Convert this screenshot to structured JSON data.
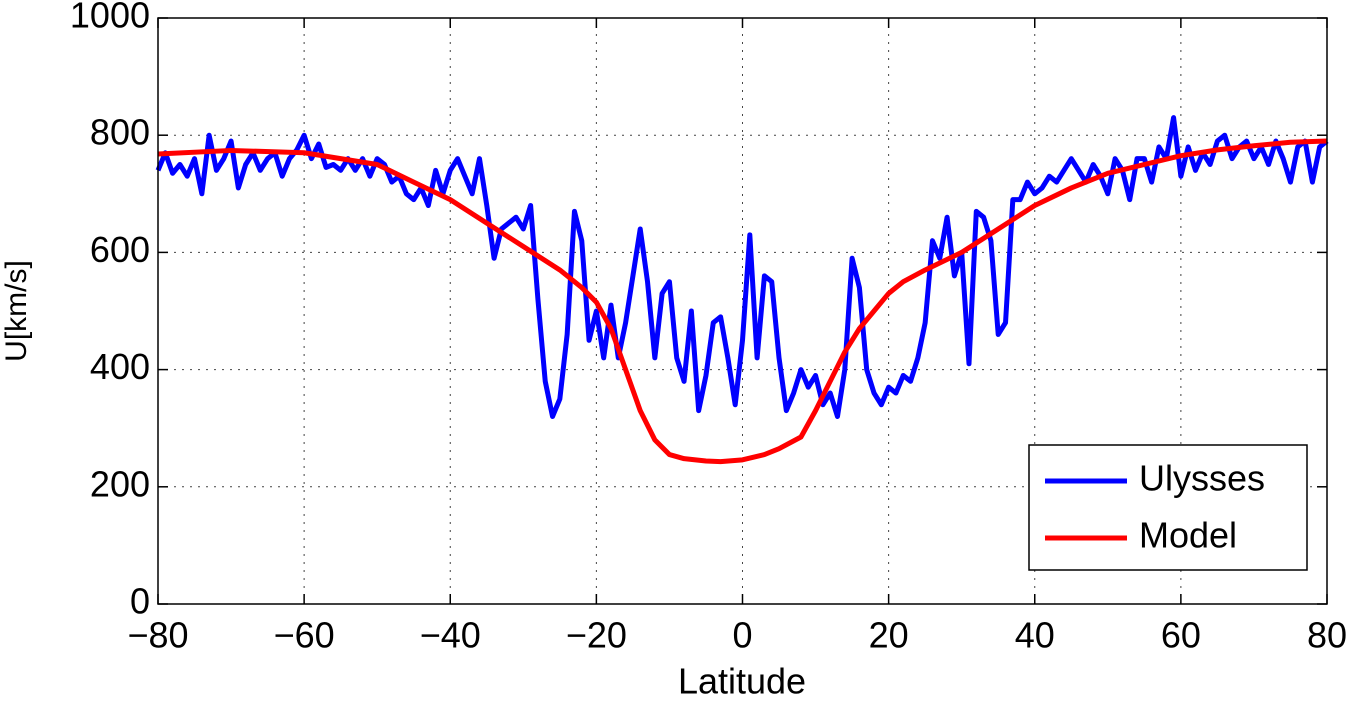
{
  "chart_data": {
    "type": "line",
    "xlabel": "Latitude",
    "ylabel": "U[km/s]",
    "xlim": [
      -80,
      80
    ],
    "ylim": [
      0,
      1000
    ],
    "xticks": [
      {
        "value": -80,
        "label": "−80"
      },
      {
        "value": -60,
        "label": "−60"
      },
      {
        "value": -40,
        "label": "−40"
      },
      {
        "value": -20,
        "label": "−20"
      },
      0,
      20,
      40,
      60,
      80
    ],
    "yticks": [
      0,
      200,
      400,
      600,
      800,
      1000
    ],
    "grid": true,
    "legend": "lower right",
    "series": [
      {
        "name": "Ulysses",
        "color": "#0000ff",
        "x": [
          -80,
          -79,
          -78,
          -77,
          -76,
          -75,
          -74,
          -73,
          -72,
          -71,
          -70,
          -69,
          -68,
          -67,
          -66,
          -65,
          -64,
          -63,
          -62,
          -61,
          -60,
          -59,
          -58,
          -57,
          -56,
          -55,
          -54,
          -53,
          -52,
          -51,
          -50,
          -49,
          -48,
          -47,
          -46,
          -45,
          -44,
          -43,
          -42,
          -41,
          -40,
          -39,
          -38,
          -37,
          -36,
          -35,
          -34,
          -33,
          -32,
          -31,
          -30,
          -29,
          -28,
          -27,
          -26,
          -25,
          -24,
          -23,
          -22,
          -21,
          -20,
          -19,
          -18,
          -17,
          -16,
          -15,
          -14,
          -13,
          -12,
          -11,
          -10,
          -9,
          -8,
          -7,
          -6,
          -5,
          -4,
          -3,
          -2,
          -1,
          0,
          1,
          2,
          3,
          4,
          5,
          6,
          7,
          8,
          9,
          10,
          11,
          12,
          13,
          14,
          15,
          16,
          17,
          18,
          19,
          20,
          21,
          22,
          23,
          24,
          25,
          26,
          27,
          28,
          29,
          30,
          31,
          32,
          33,
          34,
          35,
          36,
          37,
          38,
          39,
          40,
          41,
          42,
          43,
          44,
          45,
          46,
          47,
          48,
          49,
          50,
          51,
          52,
          53,
          54,
          55,
          56,
          57,
          58,
          59,
          60,
          61,
          62,
          63,
          64,
          65,
          66,
          67,
          68,
          69,
          70,
          71,
          72,
          73,
          74,
          75,
          76,
          77,
          78,
          79,
          80
        ],
        "values": [
          740,
          770,
          735,
          750,
          730,
          760,
          700,
          800,
          740,
          760,
          790,
          710,
          750,
          770,
          740,
          760,
          770,
          730,
          760,
          775,
          800,
          760,
          785,
          745,
          750,
          740,
          760,
          740,
          760,
          730,
          760,
          750,
          720,
          730,
          700,
          690,
          710,
          680,
          740,
          700,
          740,
          760,
          730,
          700,
          760,
          680,
          590,
          640,
          650,
          660,
          640,
          680,
          520,
          380,
          320,
          350,
          460,
          670,
          620,
          450,
          500,
          420,
          510,
          420,
          480,
          560,
          640,
          550,
          420,
          530,
          550,
          420,
          380,
          500,
          330,
          390,
          480,
          490,
          420,
          340,
          450,
          630,
          420,
          560,
          550,
          420,
          330,
          360,
          400,
          370,
          390,
          340,
          360,
          320,
          400,
          590,
          540,
          400,
          360,
          340,
          370,
          360,
          390,
          380,
          420,
          480,
          620,
          590,
          660,
          560,
          600,
          410,
          670,
          660,
          620,
          460,
          480,
          690,
          690,
          720,
          700,
          710,
          730,
          720,
          740,
          760,
          740,
          720,
          750,
          730,
          700,
          760,
          740,
          690,
          760,
          760,
          720,
          780,
          760,
          830,
          730,
          780,
          740,
          770,
          750,
          790,
          800,
          760,
          780,
          790,
          760,
          780,
          750,
          790,
          760,
          720,
          780,
          790,
          720,
          780,
          790
        ]
      },
      {
        "name": "Model",
        "color": "#ff0000",
        "x": [
          -80,
          -70,
          -60,
          -55,
          -50,
          -45,
          -40,
          -35,
          -30,
          -25,
          -22,
          -20,
          -18,
          -16,
          -14,
          -12,
          -10,
          -8,
          -5,
          -3,
          0,
          3,
          5,
          8,
          10,
          12,
          14,
          16,
          18,
          20,
          22,
          25,
          30,
          35,
          40,
          45,
          50,
          55,
          60,
          65,
          70,
          75,
          80
        ],
        "values": [
          768,
          774,
          770,
          760,
          750,
          720,
          690,
          650,
          610,
          570,
          540,
          515,
          470,
          400,
          330,
          280,
          255,
          248,
          244,
          243,
          246,
          255,
          265,
          285,
          330,
          380,
          430,
          470,
          500,
          530,
          550,
          570,
          600,
          640,
          680,
          710,
          735,
          750,
          765,
          775,
          782,
          788,
          790
        ]
      }
    ]
  }
}
